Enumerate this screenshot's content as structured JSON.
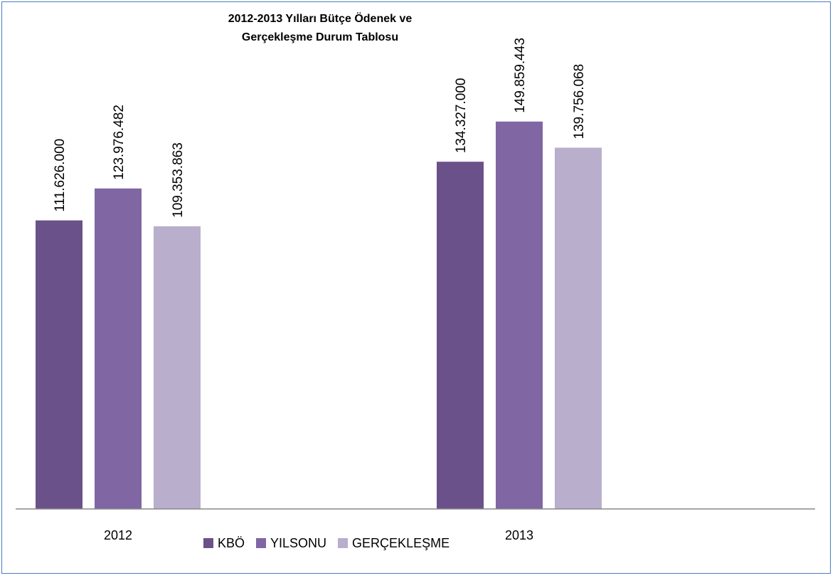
{
  "chart_data": {
    "type": "bar",
    "title_lines": [
      "2012-2013 Yılları Bütçe Ödenek ve",
      "Gerçekleşme Durum Tablosu"
    ],
    "categories": [
      "2012",
      "2013"
    ],
    "series": [
      {
        "name": "KBÖ",
        "values": [
          111626000,
          134327000
        ],
        "labels": [
          "111.626.000",
          "134.327.000"
        ],
        "color": "#6b5189"
      },
      {
        "name": "YILSONU",
        "values": [
          123976482,
          149859443
        ],
        "labels": [
          "123.976.482",
          "149.859.443"
        ],
        "color": "#8066a3"
      },
      {
        "name": "GERÇEKLEŞME",
        "values": [
          109353863,
          139756068
        ],
        "labels": [
          "109.353.863",
          "139.756.068"
        ],
        "color": "#b9aecc"
      }
    ],
    "ylim": [
      0,
      190000000
    ],
    "grid": false,
    "legend_position": "bottom"
  }
}
